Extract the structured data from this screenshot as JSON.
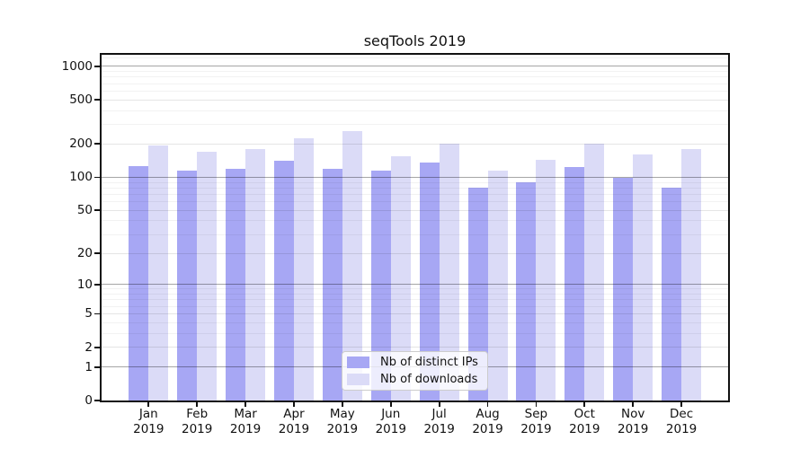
{
  "chart_data": {
    "type": "bar",
    "title": "seqTools 2019",
    "categories": [
      "Jan",
      "Feb",
      "Mar",
      "Apr",
      "May",
      "Jun",
      "Jul",
      "Aug",
      "Sep",
      "Oct",
      "Nov",
      "Dec"
    ],
    "x_year_label": "2019",
    "series": [
      {
        "name": "Nb of distinct IPs",
        "color": "#a7a7f4",
        "values": [
          125,
          115,
          120,
          140,
          120,
          115,
          135,
          80,
          90,
          123,
          98,
          80
        ]
      },
      {
        "name": "Nb of downloads",
        "color": "#dbdbf7",
        "values": [
          195,
          170,
          180,
          225,
          260,
          155,
          200,
          115,
          145,
          200,
          160,
          180
        ]
      }
    ],
    "xlabel": "",
    "ylabel": "",
    "y_axis": {
      "scale": "log1p",
      "ticks": [
        0,
        1,
        2,
        5,
        10,
        20,
        50,
        100,
        200,
        500,
        1000
      ],
      "emphasized_ticks": [
        1,
        10,
        100,
        1000
      ],
      "minor_ticks": [
        3,
        4,
        6,
        7,
        8,
        9,
        30,
        40,
        60,
        70,
        80,
        90,
        300,
        400,
        600,
        700,
        800,
        900,
        1200
      ],
      "ylim": [
        0,
        1270
      ]
    },
    "grid": true,
    "grid_above_bars": true,
    "legend": {
      "position": "lower-center",
      "entries": [
        "Nb of distinct IPs",
        "Nb of downloads"
      ]
    }
  },
  "colors": {
    "background": "#ffffff",
    "axis": "#111111",
    "grid_major": "rgba(0,0,0,0.35)",
    "grid_mid": "rgba(0,0,0,0.10)",
    "grid_minor": "rgba(0,0,0,0.05)",
    "legend_background": "rgba(255,255,255,0.8)",
    "legend_border": "#cccccc"
  }
}
